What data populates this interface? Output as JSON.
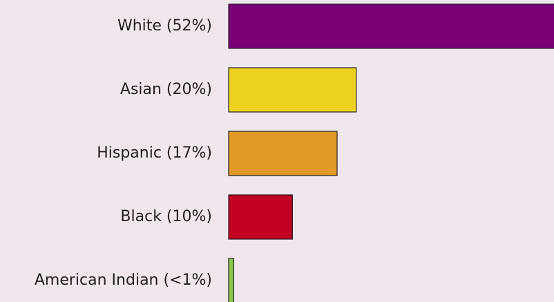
{
  "chart_data": {
    "type": "bar",
    "orientation": "horizontal",
    "categories": [
      "White (52%)",
      "Asian (20%)",
      "Hispanic (17%)",
      "Black (10%)",
      "American Indian (<1%)"
    ],
    "values": [
      52,
      20,
      17,
      10,
      0.8
    ],
    "colors": [
      "#7b0076",
      "#edd320",
      "#df9a27",
      "#c10024",
      "#8cc84b"
    ],
    "xlim": [
      0,
      51
    ],
    "grid": false,
    "legend": "none"
  }
}
